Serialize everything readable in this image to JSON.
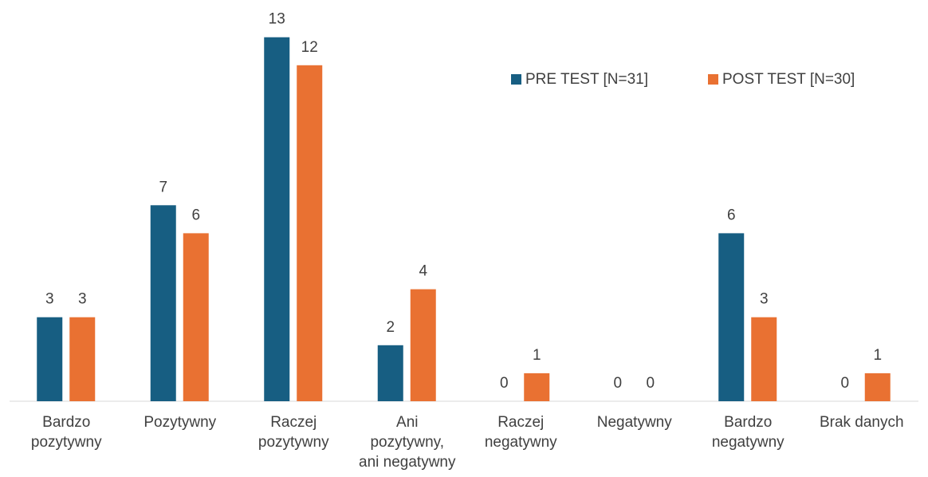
{
  "chart_data": {
    "type": "bar",
    "categories": [
      [
        "Bardzo",
        "pozytywny"
      ],
      [
        "Pozytywny"
      ],
      [
        "Raczej",
        "pozytywny"
      ],
      [
        "Ani",
        "pozytywny,",
        "ani negatywny"
      ],
      [
        "Raczej",
        "negatywny"
      ],
      [
        "Negatywny"
      ],
      [
        "Bardzo",
        "negatywny"
      ],
      [
        "Brak danych"
      ]
    ],
    "series": [
      {
        "name": "PRE TEST [N=31]",
        "color": "#175e82",
        "values": [
          3,
          7,
          13,
          2,
          0,
          0,
          6,
          0
        ]
      },
      {
        "name": "POST TEST [N=30]",
        "color": "#e97132",
        "values": [
          3,
          6,
          12,
          4,
          1,
          0,
          3,
          1
        ]
      }
    ],
    "legend": "top-right"
  }
}
